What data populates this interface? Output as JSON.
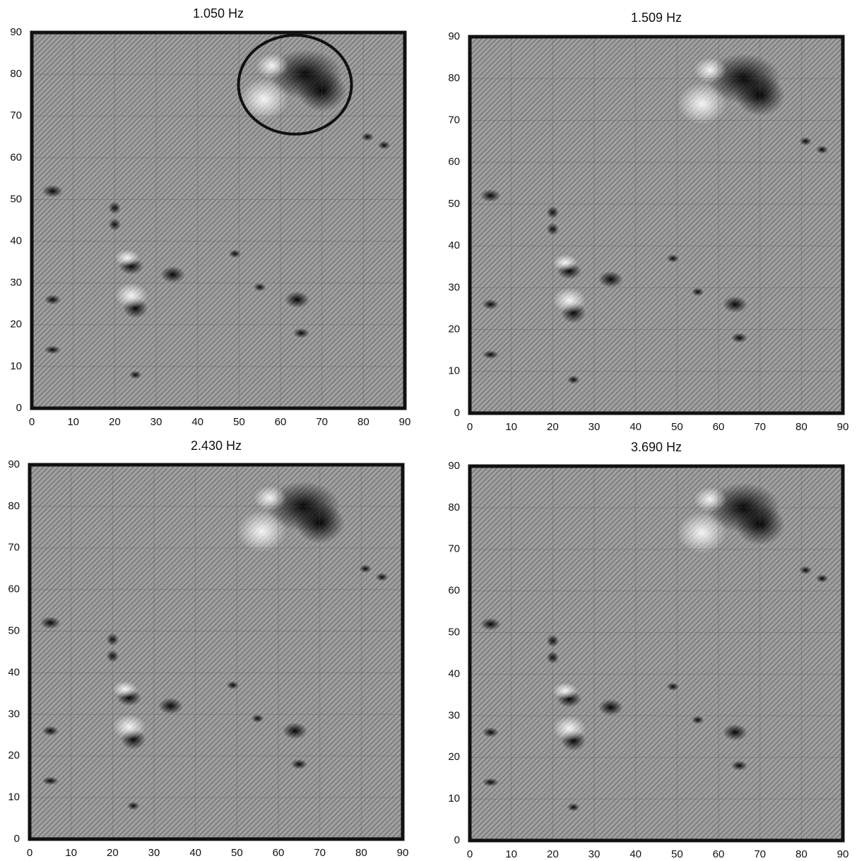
{
  "chart_data": [
    {
      "type": "image",
      "title": "1.050 Hz",
      "xlim": [
        0,
        90
      ],
      "ylim": [
        0,
        90
      ],
      "xticks": [
        0,
        10,
        20,
        30,
        40,
        50,
        60,
        70,
        80,
        90
      ],
      "yticks": [
        0,
        10,
        20,
        30,
        40,
        50,
        60,
        70,
        80,
        90
      ],
      "grid": true
    },
    {
      "type": "image",
      "title": "1.509 Hz",
      "xlim": [
        0,
        90
      ],
      "ylim": [
        0,
        90
      ],
      "xticks": [
        0,
        10,
        20,
        30,
        40,
        50,
        60,
        70,
        80,
        90
      ],
      "yticks": [
        0,
        10,
        20,
        30,
        40,
        50,
        60,
        70,
        80,
        90
      ],
      "grid": true
    },
    {
      "type": "image",
      "title": "2.430 Hz",
      "xlim": [
        0,
        90
      ],
      "ylim": [
        0,
        90
      ],
      "xticks": [
        0,
        10,
        20,
        30,
        40,
        50,
        60,
        70,
        80,
        90
      ],
      "yticks": [
        0,
        10,
        20,
        30,
        40,
        50,
        60,
        70,
        80,
        90
      ],
      "grid": true
    },
    {
      "type": "image",
      "title": "3.690 Hz",
      "xlim": [
        0,
        90
      ],
      "ylim": [
        0,
        90
      ],
      "xticks": [
        0,
        10,
        20,
        30,
        40,
        50,
        60,
        70,
        80,
        90
      ],
      "yticks": [
        0,
        10,
        20,
        30,
        40,
        50,
        60,
        70,
        80,
        90
      ],
      "grid": true
    }
  ]
}
